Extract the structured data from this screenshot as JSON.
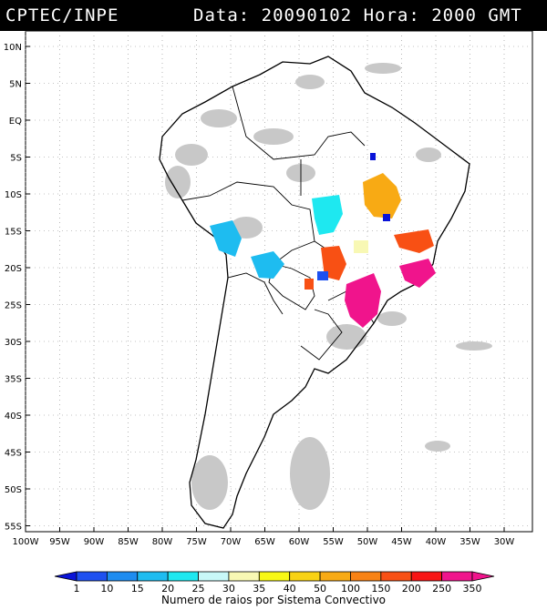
{
  "header": {
    "source": "CPTEC/INPE",
    "datetime": "Data: 20090102 Hora: 2000 GMT"
  },
  "map": {
    "lat_labels": [
      "10N",
      "5N",
      "EQ",
      "5S",
      "10S",
      "15S",
      "20S",
      "25S",
      "30S",
      "35S",
      "40S",
      "45S",
      "50S",
      "55S"
    ],
    "lon_labels": [
      "100W",
      "95W",
      "90W",
      "85W",
      "80W",
      "75W",
      "70W",
      "65W",
      "60W",
      "55W",
      "50W",
      "45W",
      "40W",
      "35W",
      "30W"
    ],
    "colors": {
      "land_outline": "#000000",
      "cloud_gray": "#c8c8c8",
      "grid": "#888888"
    }
  },
  "legend": {
    "title": "Numero de raios por Sistema Convectivo",
    "labels": [
      "1",
      "10",
      "15",
      "20",
      "25",
      "30",
      "35",
      "40",
      "50",
      "100",
      "150",
      "200",
      "250",
      "350"
    ],
    "colors": [
      "#0a14d8",
      "#1e50f0",
      "#1e8cf0",
      "#1ebcf0",
      "#1ee8f0",
      "#c8f8f8",
      "#f8f8b4",
      "#f8f814",
      "#f8d214",
      "#f8aa14",
      "#f88214",
      "#f85014",
      "#f81414",
      "#f0148c"
    ]
  },
  "systems": [
    {
      "name": "convective-system-ne-brazil-10s",
      "color": "#f8aa14"
    },
    {
      "name": "convective-system-central-cyan",
      "color": "#1ee8f0"
    },
    {
      "name": "convective-system-bolivia-cyan",
      "color": "#1ebcf0"
    },
    {
      "name": "convective-system-ms-orange",
      "color": "#f85014"
    },
    {
      "name": "convective-system-south-magenta",
      "color": "#f0148c"
    },
    {
      "name": "convective-system-se-orange",
      "color": "#f85014"
    },
    {
      "name": "convective-system-se-magenta",
      "color": "#f0148c"
    }
  ]
}
